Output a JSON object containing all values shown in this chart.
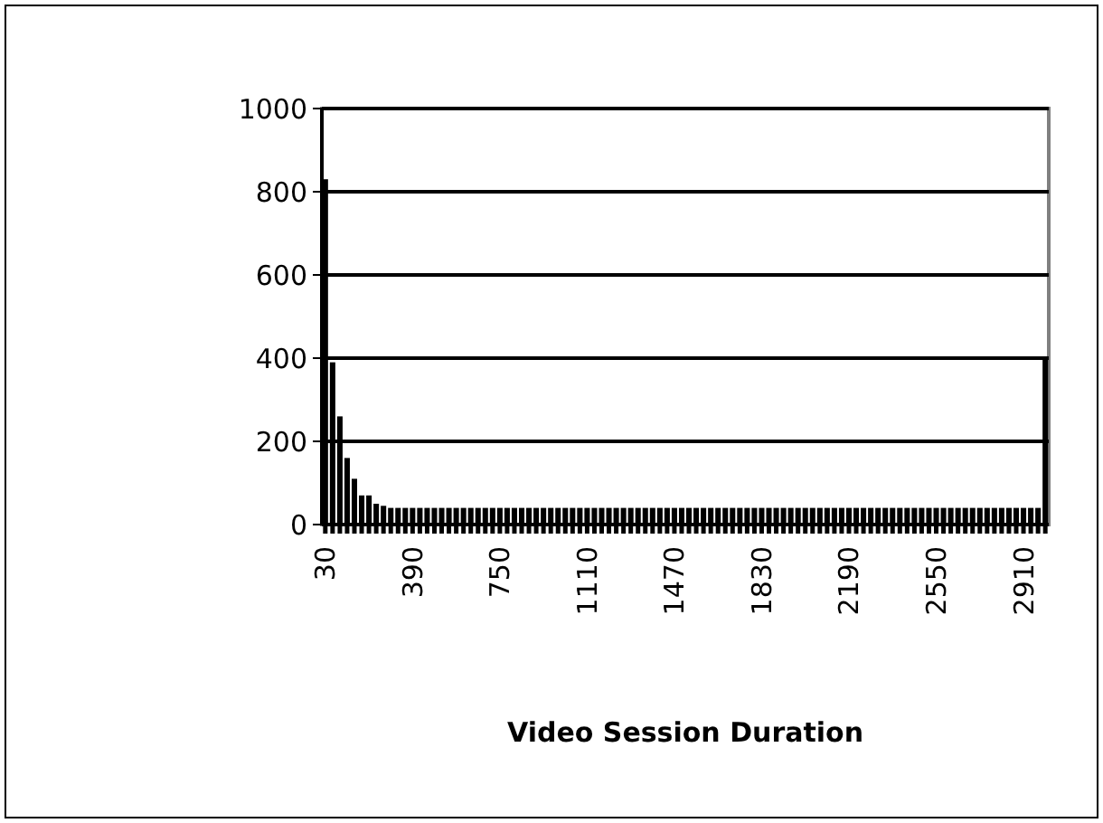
{
  "chart_data": {
    "type": "bar",
    "xlabel": "Video Session Duration",
    "categories": [
      "30",
      null,
      null,
      null,
      null,
      null,
      null,
      null,
      null,
      null,
      null,
      null,
      "390",
      null,
      null,
      null,
      null,
      null,
      null,
      null,
      null,
      null,
      null,
      null,
      "750",
      null,
      null,
      null,
      null,
      null,
      null,
      null,
      null,
      null,
      null,
      null,
      "1110",
      null,
      null,
      null,
      null,
      null,
      null,
      null,
      null,
      null,
      null,
      null,
      "1470",
      null,
      null,
      null,
      null,
      null,
      null,
      null,
      null,
      null,
      null,
      null,
      "1830",
      null,
      null,
      null,
      null,
      null,
      null,
      null,
      null,
      null,
      null,
      null,
      "2190",
      null,
      null,
      null,
      null,
      null,
      null,
      null,
      null,
      null,
      null,
      null,
      "2550",
      null,
      null,
      null,
      null,
      null,
      null,
      null,
      null,
      null,
      null,
      null,
      "2910",
      null,
      null,
      null
    ],
    "values": [
      830,
      390,
      260,
      160,
      110,
      70,
      70,
      50,
      45,
      40,
      40,
      40,
      40,
      40,
      40,
      40,
      40,
      40,
      40,
      40,
      40,
      40,
      40,
      40,
      40,
      40,
      40,
      40,
      40,
      40,
      40,
      40,
      40,
      40,
      40,
      40,
      40,
      40,
      40,
      40,
      40,
      40,
      40,
      40,
      40,
      40,
      40,
      40,
      40,
      40,
      40,
      40,
      40,
      40,
      40,
      40,
      40,
      40,
      40,
      40,
      40,
      40,
      40,
      40,
      40,
      40,
      40,
      40,
      40,
      40,
      40,
      40,
      40,
      40,
      40,
      40,
      40,
      40,
      40,
      40,
      40,
      40,
      40,
      40,
      40,
      40,
      40,
      40,
      40,
      40,
      40,
      40,
      40,
      40,
      40,
      40,
      40,
      40,
      40,
      400
    ],
    "color": "#000000",
    "ylim": [
      0,
      1000
    ],
    "yticks": [
      0,
      200,
      400,
      600,
      800,
      1000
    ],
    "grid": "y"
  }
}
